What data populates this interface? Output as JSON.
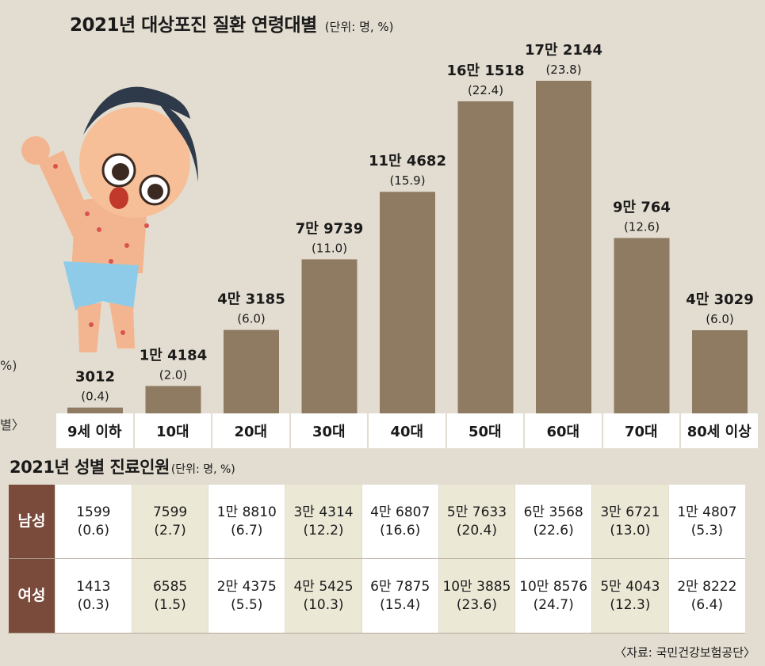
{
  "chart_title": "2021년 대상포진 질환 연령대별",
  "chart_unit": "(단위: 명, %)",
  "edge_texts": [
    "%)",
    "별〉"
  ],
  "chart_data": {
    "type": "bar",
    "title": "2021년 대상포진 질환 연령대별",
    "categories": [
      "9세 이하",
      "10대",
      "20대",
      "30대",
      "40대",
      "50대",
      "60대",
      "70대",
      "80세 이상"
    ],
    "values": [
      3012,
      14184,
      43185,
      79739,
      114682,
      161518,
      172144,
      90764,
      43029
    ],
    "value_labels": [
      "3012",
      "1만 4184",
      "4만 3185",
      "7만 9739",
      "11만 4682",
      "16만 1518",
      "17만 2144",
      "9만 764",
      "4만 3029"
    ],
    "percent_labels": [
      "(0.4)",
      "(2.0)",
      "(6.0)",
      "(11.0)",
      "(15.9)",
      "(22.4)",
      "(23.8)",
      "(12.6)",
      "(6.0)"
    ],
    "ylim": [
      0,
      172144
    ],
    "xlabel": "",
    "ylabel": "",
    "grid": false,
    "colors": {
      "bar": "#8e7b62",
      "background": "#e3ddd1"
    }
  },
  "table": {
    "title": "2021년 성별 진료인원",
    "unit": "(단위: 명, %)",
    "rows": [
      {
        "label": "남성",
        "cells": [
          {
            "value": "1599",
            "pct": "(0.6)"
          },
          {
            "value": "7599",
            "pct": "(2.7)"
          },
          {
            "value": "1만 8810",
            "pct": "(6.7)"
          },
          {
            "value": "3만 4314",
            "pct": "(12.2)"
          },
          {
            "value": "4만 6807",
            "pct": "(16.6)"
          },
          {
            "value": "5만 7633",
            "pct": "(20.4)"
          },
          {
            "value": "6만 3568",
            "pct": "(22.6)"
          },
          {
            "value": "3만 6721",
            "pct": "(13.0)"
          },
          {
            "value": "1만 4807",
            "pct": "(5.3)"
          }
        ]
      },
      {
        "label": "여성",
        "cells": [
          {
            "value": "1413",
            "pct": "(0.3)"
          },
          {
            "value": "6585",
            "pct": "(1.5)"
          },
          {
            "value": "2만 4375",
            "pct": "(5.5)"
          },
          {
            "value": "4만 5425",
            "pct": "(10.3)"
          },
          {
            "value": "6만 7875",
            "pct": "(15.4)"
          },
          {
            "value": "10만 3885",
            "pct": "(23.6)"
          },
          {
            "value": "10만 8576",
            "pct": "(24.7)"
          },
          {
            "value": "5만 4043",
            "pct": "(12.3)"
          },
          {
            "value": "2만 8222",
            "pct": "(6.4)"
          }
        ]
      }
    ]
  },
  "source": "〈자료: 국민건강보험공단〉"
}
